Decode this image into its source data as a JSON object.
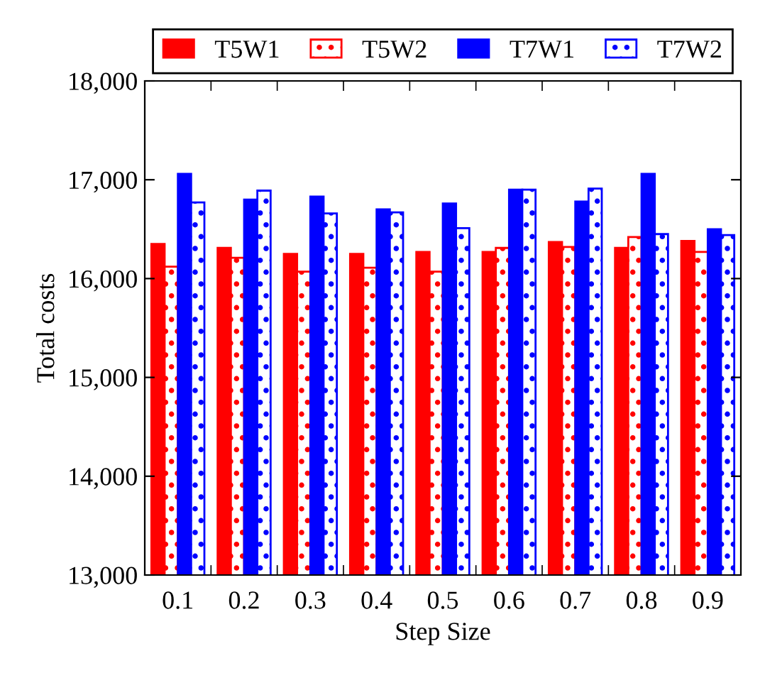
{
  "chart_data": {
    "type": "bar",
    "xlabel": "Step Size",
    "ylabel": "Total costs",
    "categories": [
      "0.1",
      "0.2",
      "0.3",
      "0.4",
      "0.5",
      "0.6",
      "0.7",
      "0.8",
      "0.9"
    ],
    "series": [
      {
        "name": "T5W1",
        "color": "#ff0000",
        "line_style": "solid",
        "values": [
          16350,
          16310,
          16250,
          16250,
          16270,
          16270,
          16370,
          16310,
          16380
        ]
      },
      {
        "name": "T5W2",
        "color": "#ff0000",
        "line_style": "dotted",
        "values": [
          16120,
          16210,
          16070,
          16110,
          16070,
          16310,
          16320,
          16420,
          16270
        ]
      },
      {
        "name": "T7W1",
        "color": "#0000ff",
        "line_style": "solid",
        "values": [
          17060,
          16800,
          16830,
          16700,
          16760,
          16900,
          16780,
          17060,
          16500
        ]
      },
      {
        "name": "T7W2",
        "color": "#0000ff",
        "line_style": "dotted",
        "values": [
          16770,
          16890,
          16660,
          16670,
          16510,
          16900,
          16910,
          16450,
          16440
        ]
      }
    ],
    "ylim": [
      13000,
      18000
    ],
    "yticks": [
      {
        "value": 13000,
        "label": "13,000"
      },
      {
        "value": 14000,
        "label": "14,000"
      },
      {
        "value": 15000,
        "label": "15,000"
      },
      {
        "value": 16000,
        "label": "16,000"
      },
      {
        "value": 17000,
        "label": "17,000"
      },
      {
        "value": 18000,
        "label": "18,000"
      }
    ],
    "grid": false,
    "legend": "top"
  }
}
